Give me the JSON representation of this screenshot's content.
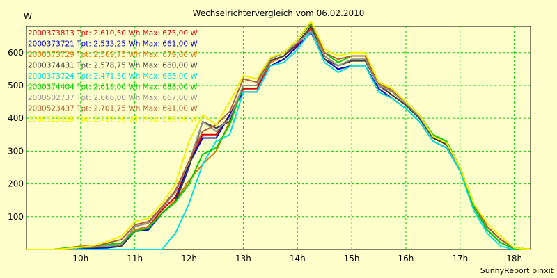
{
  "chart_data": {
    "type": "line",
    "title": "Wechselrichtervergleich vom 06.02.2010",
    "ylabel": "W",
    "ylim": [
      0,
      680
    ],
    "yticks": [
      100,
      200,
      300,
      400,
      500,
      600
    ],
    "xlim": [
      9.0,
      18.3
    ],
    "xticks": [
      {
        "v": 10,
        "label": "10h"
      },
      {
        "v": 11,
        "label": "11h"
      },
      {
        "v": 12,
        "label": "12h"
      },
      {
        "v": 13,
        "label": "13h"
      },
      {
        "v": 14,
        "label": "14h"
      },
      {
        "v": 15,
        "label": "15h"
      },
      {
        "v": 16,
        "label": "16h"
      },
      {
        "v": 17,
        "label": "17h"
      },
      {
        "v": 18,
        "label": "18h"
      }
    ],
    "grid": true,
    "legend_position": "top-left",
    "credit": "SunnyReport pinxit",
    "x": [
      9.0,
      9.25,
      9.5,
      9.75,
      10.0,
      10.25,
      10.5,
      10.75,
      11.0,
      11.25,
      11.5,
      11.75,
      12.0,
      12.25,
      12.5,
      12.75,
      13.0,
      13.25,
      13.5,
      13.75,
      14.0,
      14.25,
      14.5,
      14.75,
      15.0,
      15.25,
      15.5,
      15.75,
      16.0,
      16.25,
      16.5,
      16.75,
      17.0,
      17.25,
      17.5,
      17.75,
      18.0,
      18.3
    ],
    "series": [
      {
        "name": "2000373813",
        "legend": "2000373813 Tpt: 2.610,50 Wh Max: 675,00 W",
        "color": "#dd0000",
        "values": [
          0,
          0,
          0,
          2,
          5,
          6,
          7,
          10,
          60,
          70,
          120,
          160,
          260,
          350,
          350,
          410,
          490,
          490,
          570,
          590,
          625,
          675,
          590,
          560,
          575,
          580,
          500,
          470,
          440,
          400,
          340,
          320,
          250,
          140,
          70,
          30,
          5,
          0
        ]
      },
      {
        "name": "2000373721",
        "legend": "2000373721 Tpt: 2.533,25 Wh Max: 661,00 W",
        "color": "#0000cc",
        "values": [
          0,
          0,
          0,
          0,
          2,
          4,
          5,
          10,
          55,
          60,
          110,
          150,
          260,
          340,
          340,
          410,
          480,
          480,
          560,
          580,
          620,
          661,
          580,
          550,
          560,
          560,
          490,
          460,
          430,
          390,
          330,
          310,
          240,
          130,
          60,
          20,
          3,
          0
        ]
      },
      {
        "name": "2000373729",
        "legend": "2000373729 Tpt: 2.569,75 Wh Max: 679,00 W",
        "color": "#e07800",
        "values": [
          0,
          0,
          0,
          5,
          10,
          12,
          15,
          20,
          60,
          70,
          110,
          150,
          210,
          260,
          300,
          390,
          500,
          500,
          570,
          590,
          630,
          679,
          590,
          560,
          575,
          575,
          500,
          470,
          440,
          400,
          340,
          320,
          250,
          140,
          70,
          30,
          5,
          0
        ]
      },
      {
        "name": "2000374431",
        "legend": "2000374431 Tpt: 2.578,75 Wh Max: 680,00 W",
        "color": "#404040",
        "values": [
          0,
          0,
          0,
          2,
          5,
          6,
          8,
          10,
          55,
          65,
          110,
          145,
          250,
          390,
          370,
          390,
          500,
          500,
          575,
          590,
          630,
          680,
          580,
          560,
          575,
          575,
          500,
          470,
          440,
          400,
          340,
          320,
          250,
          140,
          70,
          30,
          5,
          0
        ]
      },
      {
        "name": "2000373724",
        "legend": "2000373724 Tpt: 2.471,50 Wh Max: 665,00 W",
        "color": "#00e0e0",
        "values": [
          0,
          0,
          0,
          0,
          0,
          0,
          0,
          0,
          0,
          0,
          0,
          50,
          140,
          260,
          330,
          350,
          480,
          480,
          560,
          570,
          610,
          665,
          570,
          540,
          560,
          560,
          480,
          460,
          430,
          390,
          330,
          310,
          240,
          120,
          50,
          10,
          0,
          0
        ]
      },
      {
        "name": "2000374404",
        "legend": "2000374404 Tpt: 2.618,00 Wh Max: 688,00 W",
        "color": "#00cc00",
        "values": [
          0,
          0,
          0,
          5,
          8,
          10,
          15,
          20,
          55,
          65,
          110,
          145,
          200,
          290,
          310,
          380,
          500,
          500,
          580,
          600,
          640,
          688,
          600,
          570,
          590,
          590,
          510,
          490,
          450,
          410,
          350,
          330,
          250,
          130,
          60,
          20,
          3,
          0
        ]
      },
      {
        "name": "2000502737",
        "legend": "2000502737 Tpt: 2.666,00 Wh Max: 667,00 W",
        "color": "#909090",
        "values": [
          0,
          0,
          0,
          2,
          5,
          8,
          10,
          15,
          70,
          80,
          125,
          175,
          265,
          390,
          360,
          400,
          500,
          500,
          580,
          600,
          630,
          667,
          590,
          560,
          580,
          580,
          500,
          480,
          445,
          405,
          345,
          325,
          250,
          140,
          70,
          30,
          5,
          0
        ]
      },
      {
        "name": "2000523437",
        "legend": "2000523437 Tpt: 2.701,75 Wh Max: 691,00 W",
        "color": "#b06030",
        "values": [
          0,
          0,
          0,
          3,
          6,
          10,
          20,
          30,
          75,
          85,
          130,
          180,
          270,
          360,
          380,
          420,
          520,
          510,
          585,
          600,
          640,
          691,
          600,
          580,
          590,
          590,
          505,
          485,
          450,
          410,
          345,
          325,
          250,
          140,
          70,
          30,
          5,
          0
        ]
      },
      {
        "name": "2000523639",
        "legend": "2000523639 Tpt: 2.727,00 Wh Max: 696,00 W",
        "color": "#f0f000",
        "values": [
          0,
          0,
          0,
          3,
          7,
          12,
          25,
          40,
          85,
          95,
          140,
          200,
          330,
          410,
          380,
          450,
          530,
          520,
          585,
          600,
          640,
          696,
          610,
          590,
          600,
          600,
          510,
          490,
          450,
          410,
          345,
          325,
          250,
          140,
          80,
          40,
          5,
          0
        ]
      }
    ]
  }
}
